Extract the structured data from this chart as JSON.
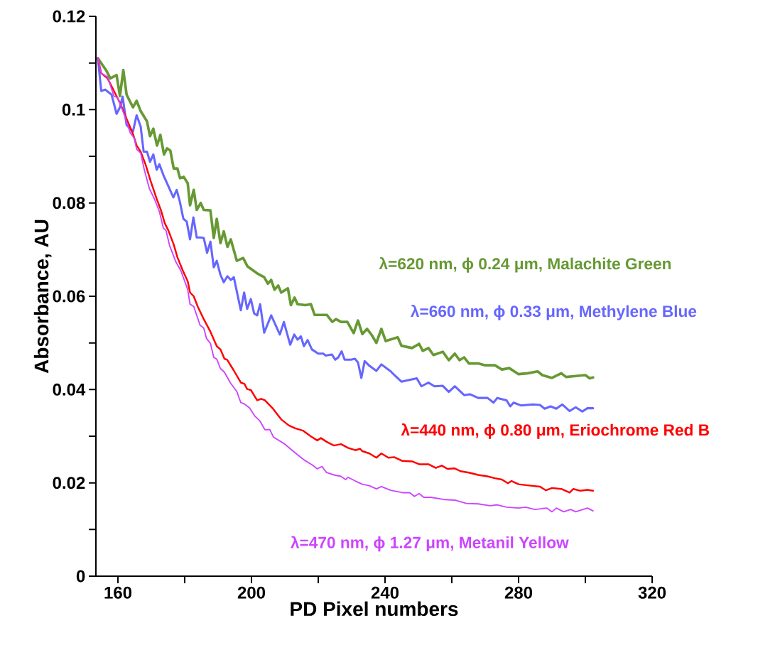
{
  "chart_data": {
    "type": "line",
    "xlabel": "PD Pixel numbers",
    "ylabel": "Absorbance, AU",
    "xlim": [
      153.4,
      320
    ],
    "ylim": [
      0,
      0.12
    ],
    "xticks": [
      160,
      200,
      240,
      280,
      320
    ],
    "yticks": [
      0,
      0.02,
      0.04,
      0.06,
      0.08,
      0.1,
      0.12
    ],
    "series": [
      {
        "name": "λ=620 nm, ϕ 0.24 μm, Malachite Green",
        "color": "#669933",
        "x": [
          154,
          156.5,
          157.7,
          159.6,
          160.6,
          161.6,
          162.6,
          164.5,
          165.6,
          166.8,
          168.7,
          169.6,
          170.6,
          171.7,
          172.7,
          173.8,
          174.7,
          175.7,
          176.7,
          177.8,
          178.6,
          179.7,
          180.9,
          181.6,
          182.7,
          183.6,
          184.8,
          185.7,
          187.7,
          188.7,
          189.6,
          190.7,
          191.7,
          192.8,
          193.8,
          195.6,
          197.5,
          198.8,
          201.7,
          203.8,
          204.9,
          205.9,
          206.9,
          208.0,
          208.9,
          210.9,
          211.8,
          212.9,
          213.8,
          216.2,
          217.8,
          218.9,
          222.6,
          224.2,
          225.3,
          226.8,
          228.7,
          230.6,
          231.9,
          233.2,
          234.6,
          236,
          237.4,
          238.9,
          240.2,
          243.8,
          244.9,
          248.1,
          250.2,
          251.3,
          253,
          254.5,
          257.3,
          259.1,
          260.9,
          262.3,
          263.7,
          265.1,
          267.9,
          270,
          272.9,
          275,
          277.2,
          280,
          282.8,
          285.7,
          287.1,
          290,
          292.8,
          294.2,
          297.2,
          300,
          301.3,
          302.3
        ],
        "values": [
          0.111,
          0.1084,
          0.1067,
          0.1074,
          0.1029,
          0.1085,
          0.1032,
          0.1005,
          0.1019,
          0.0997,
          0.0975,
          0.0943,
          0.0959,
          0.0923,
          0.0946,
          0.0904,
          0.0917,
          0.0912,
          0.0874,
          0.0874,
          0.0853,
          0.0856,
          0.0842,
          0.0795,
          0.0828,
          0.0785,
          0.08,
          0.0785,
          0.0784,
          0.0725,
          0.0766,
          0.0714,
          0.0739,
          0.0706,
          0.0722,
          0.0676,
          0.0682,
          0.0664,
          0.0649,
          0.0641,
          0.0627,
          0.0635,
          0.0614,
          0.0623,
          0.0608,
          0.0617,
          0.0581,
          0.0597,
          0.0583,
          0.0581,
          0.0583,
          0.056,
          0.056,
          0.0545,
          0.0551,
          0.0545,
          0.0545,
          0.0521,
          0.0548,
          0.0519,
          0.053,
          0.0517,
          0.05,
          0.053,
          0.0504,
          0.0512,
          0.0494,
          0.0489,
          0.0498,
          0.0483,
          0.0489,
          0.0474,
          0.0481,
          0.0463,
          0.0477,
          0.0463,
          0.0469,
          0.0456,
          0.0456,
          0.0452,
          0.0452,
          0.0443,
          0.0446,
          0.0433,
          0.0435,
          0.0439,
          0.0431,
          0.0425,
          0.0435,
          0.0427,
          0.0429,
          0.0431,
          0.0424,
          0.0426
        ]
      },
      {
        "name": "λ=660 nm, ϕ 0.33 μm, Methylene Blue",
        "color": "#6666ff",
        "x": [
          154,
          155,
          156.2,
          158.1,
          159.6,
          160.6,
          161.4,
          162.6,
          164.5,
          165.6,
          166.8,
          167.7,
          168.7,
          169.6,
          170.6,
          171.6,
          172.4,
          173.6,
          176.6,
          177.6,
          178.5,
          179.6,
          180.6,
          181.6,
          182.6,
          183.6,
          184.8,
          185.7,
          186.7,
          187.7,
          188.7,
          189.6,
          190.7,
          191.7,
          192.8,
          193.8,
          194.7,
          196.8,
          197.8,
          198.7,
          199.8,
          200.8,
          201.7,
          202.6,
          203.8,
          205.9,
          208.5,
          209.7,
          211.6,
          212.8,
          213.8,
          214.8,
          215.7,
          216.8,
          218.1,
          220,
          221.5,
          222.2,
          224.1,
          225.1,
          226,
          227,
          227.9,
          229.8,
          231,
          231.9,
          232.9,
          233.9,
          235.3,
          237.4,
          238.9,
          241.7,
          242.8,
          244.9,
          249.5,
          250.9,
          253,
          254.8,
          257.3,
          259.1,
          260.9,
          263.7,
          265.4,
          267.9,
          270.7,
          272.5,
          273.6,
          276.4,
          277.5,
          278.5,
          280.7,
          284.3,
          286.4,
          287.8,
          289.6,
          291.3,
          293.1,
          295.3,
          297.1,
          299.1,
          300.6,
          302.3
        ],
        "values": [
          0.111,
          0.104,
          0.1043,
          0.1032,
          0.0991,
          0.1005,
          0.1028,
          0.0967,
          0.0953,
          0.0988,
          0.0964,
          0.091,
          0.091,
          0.0888,
          0.0904,
          0.0871,
          0.0883,
          0.086,
          0.0812,
          0.0828,
          0.0804,
          0.0766,
          0.076,
          0.0722,
          0.0769,
          0.0726,
          0.0726,
          0.0725,
          0.0693,
          0.0717,
          0.0662,
          0.0676,
          0.0646,
          0.063,
          0.0643,
          0.0635,
          0.0641,
          0.057,
          0.0608,
          0.0573,
          0.0594,
          0.0563,
          0.0559,
          0.0583,
          0.0522,
          0.0559,
          0.0518,
          0.0545,
          0.0496,
          0.0518,
          0.0507,
          0.0514,
          0.0493,
          0.0506,
          0.0486,
          0.0477,
          0.0477,
          0.0473,
          0.0475,
          0.0464,
          0.0469,
          0.0482,
          0.0464,
          0.0464,
          0.0466,
          0.0458,
          0.0425,
          0.0461,
          0.0451,
          0.044,
          0.0454,
          0.0439,
          0.0431,
          0.0417,
          0.0424,
          0.0407,
          0.0415,
          0.0407,
          0.0408,
          0.0395,
          0.0407,
          0.0388,
          0.039,
          0.0382,
          0.0382,
          0.0372,
          0.0382,
          0.0377,
          0.0364,
          0.0372,
          0.0366,
          0.0368,
          0.0367,
          0.0359,
          0.0364,
          0.0359,
          0.0368,
          0.0354,
          0.0362,
          0.0353,
          0.036,
          0.036
        ]
      },
      {
        "name": "λ=440 nm, ϕ 0.80 μm, Eriochrome Red B",
        "color": "#ff0000",
        "x": [
          154,
          155,
          156.9,
          158.8,
          160.7,
          162.6,
          164.5,
          165.6,
          166.8,
          168.3,
          169.8,
          171.7,
          172.9,
          174,
          175.1,
          176.7,
          177.8,
          179.3,
          180.9,
          181.6,
          182.7,
          183.9,
          185.7,
          187.7,
          189.6,
          190.7,
          191.9,
          192.7,
          194.6,
          196.8,
          197.9,
          198.7,
          199.8,
          201.7,
          202.9,
          204,
          206.3,
          208.9,
          211.2,
          213.1,
          215.4,
          217.7,
          219.7,
          220.8,
          222.5,
          224.7,
          226.8,
          228.9,
          231.1,
          232.5,
          233.2,
          235.3,
          237.4,
          238.9,
          241,
          242.8,
          245.2,
          248.1,
          250.2,
          253,
          255.2,
          257,
          258.7,
          260.9,
          262.6,
          265.1,
          267.9,
          270.7,
          272.9,
          275,
          276.8,
          277.9,
          280,
          283.6,
          286.4,
          288.2,
          290,
          292.8,
          295.3,
          296.4,
          298.5,
          300.6,
          302.3
        ],
        "values": [
          0.111,
          0.1078,
          0.1067,
          0.104,
          0.1013,
          0.098,
          0.0948,
          0.0923,
          0.091,
          0.0882,
          0.0847,
          0.0807,
          0.0784,
          0.0757,
          0.0741,
          0.0711,
          0.0684,
          0.0657,
          0.0632,
          0.0608,
          0.06,
          0.0578,
          0.0551,
          0.0524,
          0.0493,
          0.0486,
          0.0466,
          0.0464,
          0.0442,
          0.0415,
          0.0412,
          0.0401,
          0.0399,
          0.0377,
          0.038,
          0.0377,
          0.036,
          0.0336,
          0.0323,
          0.0317,
          0.0312,
          0.03,
          0.0291,
          0.0296,
          0.0288,
          0.028,
          0.0283,
          0.0275,
          0.027,
          0.0273,
          0.0268,
          0.0263,
          0.0254,
          0.0263,
          0.0254,
          0.0255,
          0.0247,
          0.0246,
          0.024,
          0.024,
          0.0232,
          0.0237,
          0.023,
          0.0231,
          0.0225,
          0.0222,
          0.0217,
          0.0214,
          0.021,
          0.0207,
          0.0199,
          0.0204,
          0.0197,
          0.0194,
          0.0192,
          0.0184,
          0.0189,
          0.0187,
          0.0179,
          0.0187,
          0.0183,
          0.0185,
          0.0183
        ]
      },
      {
        "name": "λ=470 nm, ϕ 1.27 μm, Metanil Yellow",
        "color": "#cc44ff",
        "x": [
          154,
          155,
          156.9,
          158.8,
          159.9,
          161.8,
          163.7,
          164.9,
          165.6,
          166.8,
          167.9,
          169.4,
          170.9,
          172.4,
          173.6,
          174.4,
          175.5,
          177.4,
          178.9,
          180.9,
          181.6,
          182.7,
          184.6,
          185.7,
          186.5,
          187.7,
          188.7,
          189.6,
          190.7,
          191.9,
          193.8,
          195.6,
          196.8,
          197.9,
          199.4,
          200.9,
          202.5,
          204,
          205.5,
          206.6,
          210,
          213.5,
          216,
          218.3,
          219.7,
          221.1,
          222.5,
          224.7,
          226.8,
          228.2,
          228.9,
          231.1,
          233.2,
          235.3,
          237.4,
          238.9,
          241.7,
          245.2,
          247.4,
          248.8,
          250.2,
          251.6,
          253.8,
          258,
          260.9,
          264.4,
          267.9,
          271.5,
          273.6,
          276.4,
          280,
          282.1,
          284.9,
          288.5,
          290,
          291.3,
          293.5,
          295.6,
          297.1,
          300.6,
          302.3
        ],
        "values": [
          0.111,
          0.1078,
          0.107,
          0.1029,
          0.1026,
          0.0991,
          0.095,
          0.0939,
          0.0915,
          0.0907,
          0.0871,
          0.0831,
          0.0809,
          0.0782,
          0.0746,
          0.0741,
          0.0708,
          0.0673,
          0.0654,
          0.0614,
          0.0583,
          0.0578,
          0.0538,
          0.0532,
          0.051,
          0.0499,
          0.0469,
          0.0465,
          0.0445,
          0.0437,
          0.0413,
          0.0396,
          0.0372,
          0.0369,
          0.0361,
          0.0344,
          0.0333,
          0.0314,
          0.0314,
          0.0298,
          0.0283,
          0.0262,
          0.0248,
          0.0238,
          0.023,
          0.0235,
          0.0222,
          0.0217,
          0.0214,
          0.0207,
          0.0212,
          0.0204,
          0.0197,
          0.0194,
          0.0187,
          0.0192,
          0.0184,
          0.0179,
          0.0179,
          0.0171,
          0.0177,
          0.0169,
          0.0169,
          0.0164,
          0.0163,
          0.0156,
          0.0155,
          0.0151,
          0.0153,
          0.0148,
          0.0146,
          0.0148,
          0.0143,
          0.0146,
          0.0138,
          0.0146,
          0.0138,
          0.0143,
          0.0138,
          0.0146,
          0.014
        ]
      }
    ]
  }
}
